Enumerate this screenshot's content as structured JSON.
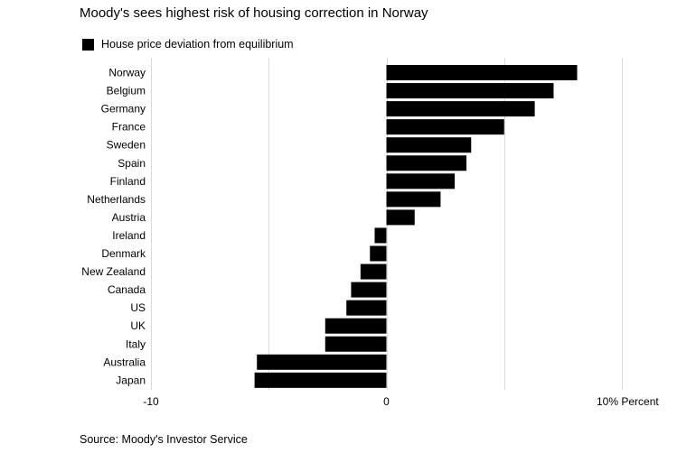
{
  "title": "Moody's sees highest risk of housing correction in Norway",
  "source": "Source: Moody's Investor Service",
  "colors": {
    "bar": "#000000",
    "grid": "#d9d9d9",
    "background": "#ffffff"
  },
  "chart_data": {
    "type": "bar",
    "orientation": "horizontal",
    "categories": [
      "Norway",
      "Belgium",
      "Germany",
      "France",
      "Sweden",
      "Spain",
      "Finland",
      "Netherlands",
      "Austria",
      "Ireland",
      "Denmark",
      "New Zealand",
      "Canada",
      "US",
      "UK",
      "Italy",
      "Australia",
      "Japan"
    ],
    "series": [
      {
        "name": "House price deviation from equilibrium",
        "values": [
          8.1,
          7.1,
          6.3,
          5.0,
          3.6,
          3.4,
          2.9,
          2.3,
          1.2,
          -0.5,
          -0.7,
          -1.1,
          -1.5,
          -1.7,
          -2.6,
          -2.6,
          -5.5,
          -5.6
        ]
      }
    ],
    "xlim": [
      -10,
      10
    ],
    "xticks": [
      {
        "value": -10,
        "label": "-10"
      },
      {
        "value": 0,
        "label": "0"
      },
      {
        "value": 10,
        "label": "10% Percent"
      }
    ],
    "grid": true,
    "legend": "top-left"
  }
}
